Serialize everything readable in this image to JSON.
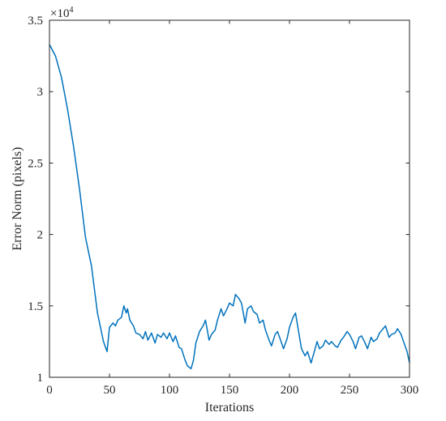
{
  "chart_data": {
    "type": "line",
    "title": "",
    "xlabel": "Iterations",
    "ylabel": "Error Norm (pixels)",
    "xlim": [
      0,
      300
    ],
    "ylim": [
      1,
      3.5
    ],
    "xticks": [
      0,
      50,
      100,
      150,
      200,
      250,
      300
    ],
    "yticks": [
      1,
      1.5,
      2,
      2.5,
      3,
      3.5
    ],
    "yticklabels": [
      "1",
      "1.5",
      "2",
      "2.5",
      "3",
      "3.5"
    ],
    "y_multiplier": {
      "base": "×10",
      "exponent": "4"
    },
    "grid": false,
    "legend": "none",
    "series": [
      {
        "color": "#0072BD",
        "x": [
          0,
          5,
          10,
          15,
          20,
          25,
          30,
          35,
          40,
          45,
          48,
          50,
          53,
          55,
          57,
          60,
          62,
          64,
          65,
          67,
          70,
          72,
          75,
          78,
          80,
          82,
          85,
          88,
          90,
          93,
          95,
          98,
          100,
          103,
          105,
          108,
          110,
          113,
          115,
          118,
          120,
          122,
          125,
          128,
          130,
          133,
          135,
          138,
          140,
          143,
          145,
          148,
          150,
          153,
          155,
          158,
          160,
          163,
          165,
          168,
          170,
          173,
          175,
          178,
          180,
          183,
          185,
          188,
          190,
          193,
          195,
          198,
          200,
          203,
          205,
          208,
          210,
          213,
          215,
          218,
          220,
          223,
          225,
          228,
          230,
          233,
          235,
          238,
          240,
          243,
          245,
          248,
          250,
          253,
          255,
          258,
          260,
          263,
          265,
          268,
          270,
          273,
          275,
          278,
          280,
          283,
          285,
          288,
          290,
          293,
          295,
          298,
          300
        ],
        "y": [
          3.33,
          3.25,
          3.1,
          2.88,
          2.62,
          2.32,
          1.98,
          1.78,
          1.45,
          1.25,
          1.18,
          1.35,
          1.38,
          1.36,
          1.4,
          1.42,
          1.5,
          1.45,
          1.48,
          1.4,
          1.36,
          1.31,
          1.3,
          1.27,
          1.32,
          1.26,
          1.31,
          1.24,
          1.3,
          1.28,
          1.31,
          1.27,
          1.31,
          1.25,
          1.29,
          1.21,
          1.2,
          1.12,
          1.08,
          1.06,
          1.12,
          1.24,
          1.32,
          1.36,
          1.4,
          1.26,
          1.3,
          1.33,
          1.4,
          1.48,
          1.43,
          1.48,
          1.52,
          1.5,
          1.58,
          1.55,
          1.52,
          1.38,
          1.48,
          1.5,
          1.46,
          1.44,
          1.38,
          1.4,
          1.33,
          1.26,
          1.22,
          1.3,
          1.32,
          1.25,
          1.2,
          1.27,
          1.35,
          1.42,
          1.45,
          1.3,
          1.2,
          1.15,
          1.18,
          1.1,
          1.16,
          1.25,
          1.2,
          1.22,
          1.26,
          1.23,
          1.25,
          1.22,
          1.21,
          1.26,
          1.28,
          1.32,
          1.3,
          1.25,
          1.2,
          1.28,
          1.29,
          1.24,
          1.2,
          1.28,
          1.25,
          1.27,
          1.31,
          1.34,
          1.36,
          1.28,
          1.3,
          1.31,
          1.34,
          1.3,
          1.25,
          1.18,
          1.1
        ]
      }
    ]
  }
}
